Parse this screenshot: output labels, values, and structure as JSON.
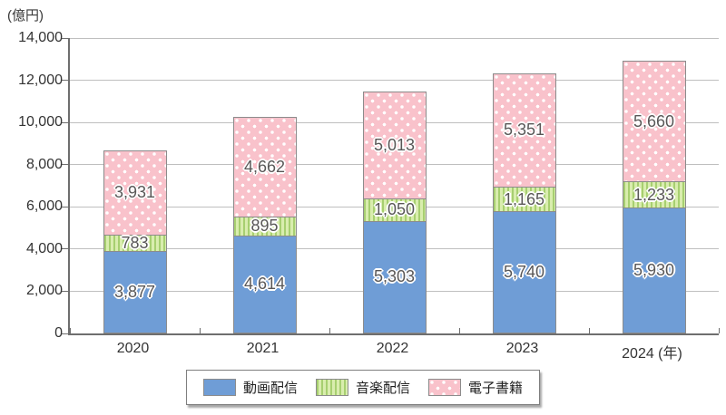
{
  "colors": {
    "video_fill": "#6f9dd6",
    "music_fill_light": "#d9edae",
    "music_fill_dark": "#a7cf70",
    "ebook_fill": "#f9c2cb",
    "ebook_dot": "#ffffff",
    "segment_border": "#8c8c8c",
    "gridline": "#bfbfbf",
    "axis": "#6e6e6e",
    "value_text": "#595757",
    "tick_text": "#333333"
  },
  "chart_data": {
    "type": "bar",
    "stacked": true,
    "title": "",
    "ylabel": "(億円)",
    "ylim": [
      0,
      14000
    ],
    "ytick_step": 2000,
    "ytick_labels": [
      "0",
      "2,000",
      "4,000",
      "6,000",
      "8,000",
      "10,000",
      "12,000",
      "14,000"
    ],
    "categories": [
      "2020",
      "2021",
      "2022",
      "2023",
      "2024"
    ],
    "x_tick_labels": [
      "2020",
      "2021",
      "2022",
      "2023",
      "2024 (年)"
    ],
    "grid": true,
    "legend_position": "bottom",
    "series": [
      {
        "key": "video",
        "name": "動画配信",
        "pattern": "solid",
        "values": [
          3877,
          4614,
          5303,
          5740,
          5930
        ],
        "value_labels": [
          "3,877",
          "4,614",
          "5,303",
          "5,740",
          "5,930"
        ]
      },
      {
        "key": "music",
        "name": "音楽配信",
        "pattern": "vertical-stripes",
        "values": [
          783,
          895,
          1050,
          1165,
          1233
        ],
        "value_labels": [
          "783",
          "895",
          "1,050",
          "1,165",
          "1,233"
        ]
      },
      {
        "key": "ebook",
        "name": "電子書籍",
        "pattern": "polka-dots",
        "values": [
          3931,
          4662,
          5013,
          5351,
          5660
        ],
        "value_labels": [
          "3,931",
          "4,662",
          "5,013",
          "5,351",
          "5,660"
        ]
      }
    ]
  }
}
